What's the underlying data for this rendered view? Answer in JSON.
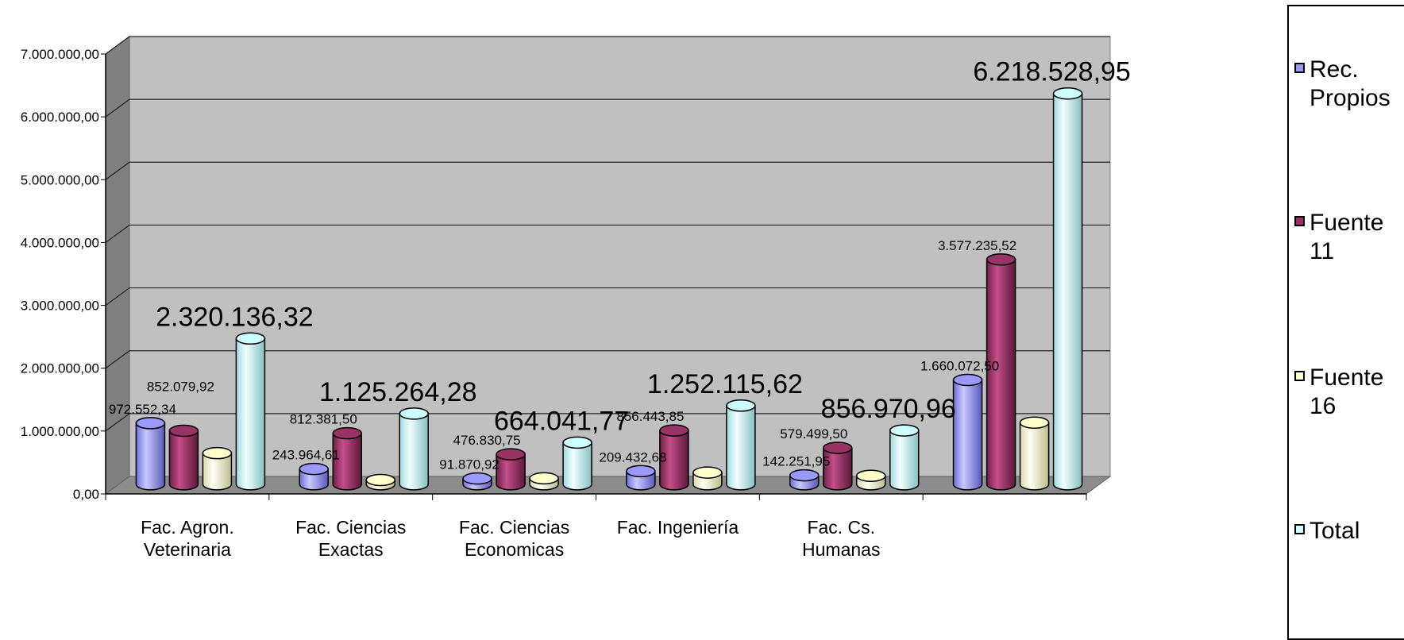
{
  "chart_data": {
    "type": "bar",
    "categories": [
      "Fac. Agron. Veterinaria",
      "Fac. Ciencias Exactas",
      "Fac. Ciencias Economicas",
      "Fac. Ingeniería",
      "Fac. Cs. Humanas",
      ""
    ],
    "series": [
      {
        "name": "Rec. Propios",
        "color": "#9999FF",
        "values": [
          972552.34,
          243964.61,
          91870.92,
          209432.68,
          142251.95,
          1660072.5
        ],
        "labels": [
          "972.552,34",
          "243.964,61",
          "91.870,92",
          "209.432,68",
          "142.251,95",
          "1.660.072,50"
        ]
      },
      {
        "name": "Fuente 11",
        "color": "#993366",
        "values": [
          852079.92,
          812381.5,
          476830.75,
          856443.85,
          579499.5,
          3577235.52
        ],
        "labels": [
          "852.079,92",
          "812.381,50",
          "476.830,75",
          "856.443,85",
          "579.499,50",
          "3.577.235,52"
        ]
      },
      {
        "name": "Fuente 16",
        "color": "#FFFFCC",
        "values": [
          495504.06,
          68918.17,
          95340.1,
          186239.09,
          135219.51,
          981220.93
        ],
        "labels": []
      },
      {
        "name": "Total",
        "color": "#CCFFFF",
        "values": [
          2320136.32,
          1125264.28,
          664041.77,
          1252115.62,
          856970.96,
          6218528.95
        ],
        "labels": [
          "2.320.136,32",
          "1.125.264,28",
          "664.041,77",
          "1.252.115,62",
          "856.970,96",
          "6.218.528,95"
        ]
      }
    ],
    "y_ticks": [
      "0,00",
      "1.000.000,00",
      "2.000.000,00",
      "3.000.000,00",
      "4.000.000,00",
      "5.000.000,00",
      "6.000.000,00",
      "7.000.000,00"
    ],
    "ylim": [
      0,
      7000000
    ],
    "title": "",
    "xlabel": "",
    "ylabel": "",
    "grid": true,
    "legend": "right"
  },
  "legend": {
    "items": [
      {
        "label": "Rec. Propios",
        "color": "#9999FF"
      },
      {
        "label": "Fuente 11",
        "color": "#993366"
      },
      {
        "label": "Fuente 16",
        "color": "#FFFFCC"
      },
      {
        "label": "Total",
        "color": "#CCFFFF"
      }
    ]
  }
}
